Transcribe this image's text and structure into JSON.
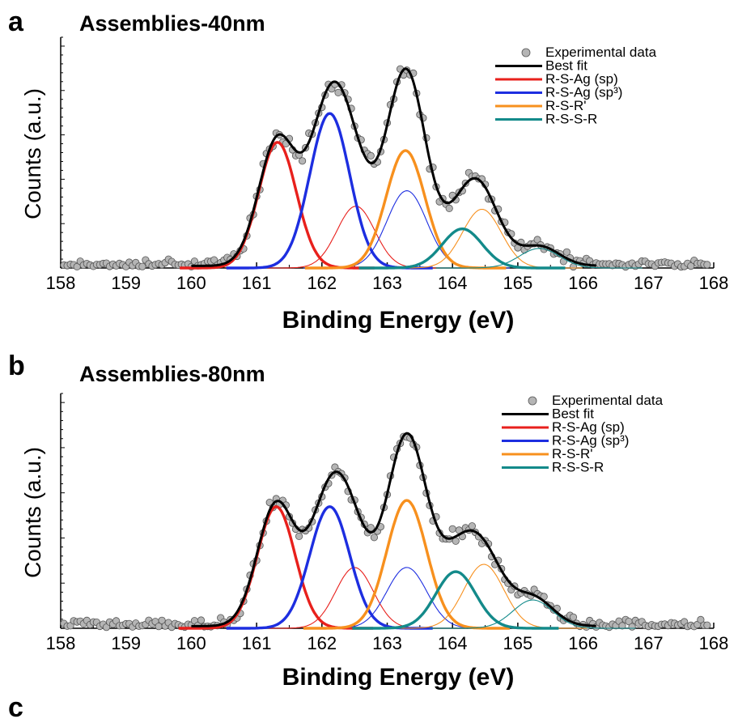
{
  "panel_c_letter": "c",
  "chart_data": [
    {
      "type": "line",
      "panel_letter": "a",
      "title": "Assemblies-40nm",
      "xlabel": "Binding Energy (eV)",
      "ylabel": "Counts (a.u.)",
      "xlim": [
        158,
        168
      ],
      "ylim": [
        0,
        1.12
      ],
      "x_ticks": [
        "158",
        "159",
        "160",
        "161",
        "162",
        "163",
        "164",
        "165",
        "166",
        "167",
        "168"
      ],
      "y_ticks_labeled": false,
      "grid": false,
      "legend": {
        "position": "top-right",
        "entries": [
          {
            "label": "Experimental data",
            "marker": "circle",
            "color": "#b5b5b5"
          },
          {
            "label": "Best fit",
            "color": "#000000"
          },
          {
            "label": "R-S-Ag (sp)",
            "color": "#e8201c"
          },
          {
            "label": "R-S-Ag (sp³)",
            "color": "#1d2ee0"
          },
          {
            "label": "R-S-R'",
            "color": "#f7901e"
          },
          {
            "label": "R-S-S-R",
            "color": "#138a8a"
          }
        ]
      },
      "components": [
        {
          "name": "R-S-Ag (sp)",
          "center": 161.32,
          "height": 0.61,
          "fwhm": 0.68,
          "color": "#e8201c",
          "style": "thick"
        },
        {
          "name": "R-S-Ag (sp)",
          "center": 162.52,
          "height": 0.3,
          "fwhm": 0.68,
          "color": "#e8201c",
          "style": "thin"
        },
        {
          "name": "R-S-Ag (sp³)",
          "center": 162.12,
          "height": 0.75,
          "fwhm": 0.72,
          "color": "#1d2ee0",
          "style": "thick"
        },
        {
          "name": "R-S-Ag (sp³)",
          "center": 163.3,
          "height": 0.375,
          "fwhm": 0.72,
          "color": "#1d2ee0",
          "style": "thin"
        },
        {
          "name": "R-S-R'",
          "center": 163.28,
          "height": 0.57,
          "fwhm": 0.7,
          "color": "#f7901e",
          "style": "thick"
        },
        {
          "name": "R-S-R'",
          "center": 164.45,
          "height": 0.285,
          "fwhm": 0.7,
          "color": "#f7901e",
          "style": "thin"
        },
        {
          "name": "R-S-S-R",
          "center": 164.15,
          "height": 0.19,
          "fwhm": 0.72,
          "color": "#138a8a",
          "style": "thick"
        },
        {
          "name": "R-S-S-R",
          "center": 165.33,
          "height": 0.095,
          "fwhm": 0.72,
          "color": "#138a8a",
          "style": "thin"
        }
      ]
    },
    {
      "type": "line",
      "panel_letter": "b",
      "title": "Assemblies-80nm",
      "xlabel": "Binding Energy (eV)",
      "ylabel": "Counts (a.u.)",
      "xlim": [
        158,
        168
      ],
      "ylim": [
        0,
        1.12
      ],
      "x_ticks": [
        "158",
        "159",
        "160",
        "161",
        "162",
        "163",
        "164",
        "165",
        "166",
        "167",
        "168"
      ],
      "y_ticks_labeled": false,
      "grid": false,
      "legend": {
        "position": "top-right",
        "entries": [
          {
            "label": "Experimental data",
            "marker": "circle",
            "color": "#b5b5b5"
          },
          {
            "label": "Best fit",
            "color": "#000000"
          },
          {
            "label": "R-S-Ag (sp)",
            "color": "#e8201c"
          },
          {
            "label": "R-S-Ag (sp³)",
            "color": "#1d2ee0"
          },
          {
            "label": "R-S-R'",
            "color": "#f7901e"
          },
          {
            "label": "R-S-S-R",
            "color": "#138a8a"
          }
        ]
      },
      "components": [
        {
          "name": "R-S-Ag (sp)",
          "center": 161.3,
          "height": 0.58,
          "fwhm": 0.68,
          "color": "#e8201c",
          "style": "thick"
        },
        {
          "name": "R-S-Ag (sp)",
          "center": 162.5,
          "height": 0.29,
          "fwhm": 0.68,
          "color": "#e8201c",
          "style": "thin"
        },
        {
          "name": "R-S-Ag (sp³)",
          "center": 162.12,
          "height": 0.58,
          "fwhm": 0.72,
          "color": "#1d2ee0",
          "style": "thick"
        },
        {
          "name": "R-S-Ag (sp³)",
          "center": 163.3,
          "height": 0.29,
          "fwhm": 0.72,
          "color": "#1d2ee0",
          "style": "thin"
        },
        {
          "name": "R-S-R'",
          "center": 163.3,
          "height": 0.61,
          "fwhm": 0.72,
          "color": "#f7901e",
          "style": "thick"
        },
        {
          "name": "R-S-R'",
          "center": 164.48,
          "height": 0.305,
          "fwhm": 0.72,
          "color": "#f7901e",
          "style": "thin"
        },
        {
          "name": "R-S-S-R",
          "center": 164.05,
          "height": 0.27,
          "fwhm": 0.72,
          "color": "#138a8a",
          "style": "thick"
        },
        {
          "name": "R-S-S-R",
          "center": 165.23,
          "height": 0.135,
          "fwhm": 0.72,
          "color": "#138a8a",
          "style": "thin"
        }
      ]
    }
  ]
}
